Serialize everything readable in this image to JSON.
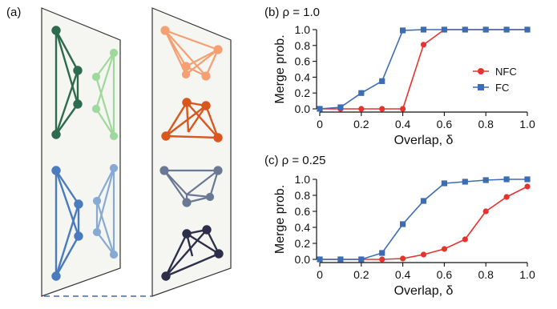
{
  "panels": {
    "a": {
      "label": "(a)"
    },
    "b": {
      "label": "(b) ρ = 1.0"
    },
    "c": {
      "label": "(c) ρ = 0.25"
    }
  },
  "colors": {
    "nfc": "#e8322e",
    "fc": "#3b6db5",
    "sheet_fill": "#f5f5f2",
    "sheet_stroke": "#333333",
    "dashed_link": "#3b6db5",
    "left_top_dark": "#2e6b4e",
    "left_top_light": "#9fd89c",
    "left_bottom_dark": "#4a7bbf",
    "left_bottom_light": "#86aad3",
    "right_1": "#f5a072",
    "right_2": "#d9561c",
    "right_3": "#6b7894",
    "right_4": "#2d2f4a"
  },
  "chart_data": [
    {
      "type": "line",
      "title": "(b) ρ = 1.0",
      "xlabel": "Overlap, δ",
      "ylabel": "Merge prob.",
      "xlim": [
        0,
        1.0
      ],
      "ylim": [
        0,
        1.0
      ],
      "xticks": [
        "0",
        "0.2",
        "0.4",
        "0.6",
        "0.8",
        "1.0"
      ],
      "yticks": [
        "0.0",
        "0.2",
        "0.4",
        "0.6",
        "0.8",
        "1.0"
      ],
      "grid": false,
      "legend_position": "right",
      "series": [
        {
          "name": "NFC",
          "marker": "circle",
          "x": [
            0,
            0.1,
            0.2,
            0.3,
            0.4,
            0.5,
            0.6,
            0.7,
            0.8,
            0.9,
            1.0
          ],
          "y": [
            0.0,
            0.0,
            0.0,
            0.0,
            0.0,
            0.81,
            1.0,
            1.0,
            1.0,
            1.0,
            1.0
          ]
        },
        {
          "name": "FC",
          "marker": "square",
          "x": [
            0,
            0.1,
            0.2,
            0.3,
            0.4,
            0.5,
            0.6,
            0.7,
            0.8,
            0.9,
            1.0
          ],
          "y": [
            0.0,
            0.02,
            0.2,
            0.35,
            0.99,
            1.0,
            1.0,
            1.0,
            1.0,
            1.0,
            1.0
          ]
        }
      ]
    },
    {
      "type": "line",
      "title": "(c) ρ = 0.25",
      "xlabel": "Overlap, δ",
      "ylabel": "Merge prob.",
      "xlim": [
        0,
        1.0
      ],
      "ylim": [
        0,
        1.0
      ],
      "xticks": [
        "0",
        "0.2",
        "0.4",
        "0.6",
        "0.8",
        "1.0"
      ],
      "yticks": [
        "0.0",
        "0.2",
        "0.4",
        "0.6",
        "0.8",
        "1.0"
      ],
      "grid": false,
      "series": [
        {
          "name": "NFC",
          "marker": "circle",
          "x": [
            0,
            0.1,
            0.2,
            0.3,
            0.4,
            0.5,
            0.6,
            0.7,
            0.8,
            0.9,
            1.0
          ],
          "y": [
            0.0,
            0.0,
            0.0,
            0.0,
            0.01,
            0.06,
            0.13,
            0.25,
            0.6,
            0.78,
            0.91
          ]
        },
        {
          "name": "FC",
          "marker": "square",
          "x": [
            0,
            0.1,
            0.2,
            0.3,
            0.4,
            0.5,
            0.6,
            0.7,
            0.8,
            0.9,
            1.0
          ],
          "y": [
            0.0,
            0.0,
            0.0,
            0.08,
            0.44,
            0.73,
            0.95,
            0.97,
            0.99,
            1.0,
            1.0
          ]
        }
      ]
    }
  ]
}
